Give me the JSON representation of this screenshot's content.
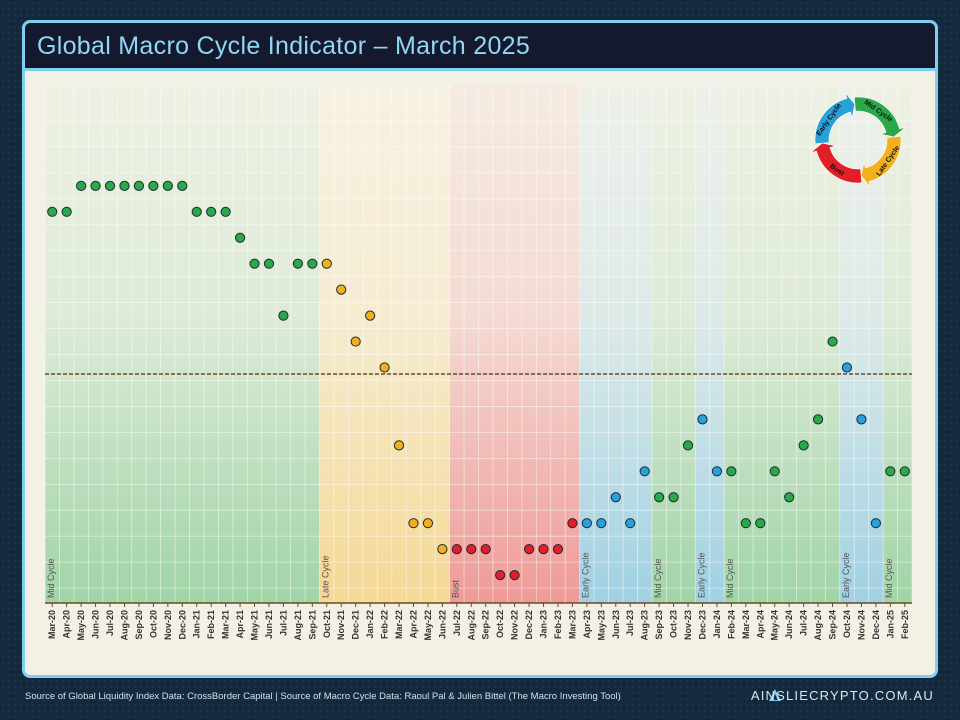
{
  "header": {
    "title": "Global Macro Cycle Indicator – March 2025"
  },
  "footer": {
    "source": "Source of Global Liquidity Index Data: CrossBorder Capital | Source of Macro Cycle Data: Raoul Pal & Julien Bittel (The Macro Investing Tool)",
    "brand": "AINSLIECRYPTO.COM.AU"
  },
  "legend": {
    "labels": [
      "Mid Cycle",
      "Late Cycle",
      "Bust",
      "Early Cycle"
    ],
    "colors": {
      "Mid Cycle": "#2aa84a",
      "Late Cycle": "#f2b01e",
      "Bust": "#e41e26",
      "Early Cycle": "#29a0da"
    }
  },
  "chart_data": {
    "type": "scatter",
    "title": "Global Macro Cycle Indicator – March 2025",
    "ylim": [
      0,
      21
    ],
    "threshold": 9.75,
    "categories": [
      "Mar-20",
      "Apr-20",
      "May-20",
      "Jun-20",
      "Jul-20",
      "Aug-20",
      "Sep-20",
      "Oct-20",
      "Nov-20",
      "Dec-20",
      "Jan-21",
      "Feb-21",
      "Mar-21",
      "Apr-21",
      "May-21",
      "Jun-21",
      "Jul-21",
      "Aug-21",
      "Sep-21",
      "Oct-21",
      "Nov-21",
      "Dec-21",
      "Jan-22",
      "Feb-22",
      "Mar-22",
      "Apr-22",
      "May-22",
      "Jun-22",
      "Jul-22",
      "Aug-22",
      "Sep-22",
      "Oct-22",
      "Nov-22",
      "Dec-22",
      "Jan-23",
      "Feb-23",
      "Mar-23",
      "Apr-23",
      "May-23",
      "Jun-23",
      "Jul-23",
      "Aug-23",
      "Sep-23",
      "Oct-23",
      "Nov-23",
      "Dec-23",
      "Jan-24",
      "Feb-24",
      "Mar-24",
      "Apr-24",
      "May-24",
      "Jun-24",
      "Jul-24",
      "Aug-24",
      "Sep-24",
      "Oct-24",
      "Nov-24",
      "Dec-24",
      "Jan-25",
      "Feb-25"
    ],
    "values": [
      16,
      16,
      17,
      17,
      17,
      17,
      17,
      17,
      17,
      17,
      16,
      16,
      16,
      15,
      14,
      14,
      12,
      14,
      14,
      14,
      13,
      11,
      12,
      10,
      7,
      4,
      4,
      3,
      3,
      3,
      3,
      2,
      2,
      3,
      3,
      3,
      4,
      4,
      4,
      5,
      4,
      6,
      5,
      5,
      7,
      8,
      6,
      6,
      4,
      4,
      6,
      5,
      7,
      8,
      11,
      10,
      8,
      4,
      6,
      6
    ],
    "phases": [
      "Mid Cycle",
      "Mid Cycle",
      "Mid Cycle",
      "Mid Cycle",
      "Mid Cycle",
      "Mid Cycle",
      "Mid Cycle",
      "Mid Cycle",
      "Mid Cycle",
      "Mid Cycle",
      "Mid Cycle",
      "Mid Cycle",
      "Mid Cycle",
      "Mid Cycle",
      "Mid Cycle",
      "Mid Cycle",
      "Mid Cycle",
      "Mid Cycle",
      "Mid Cycle",
      "Late Cycle",
      "Late Cycle",
      "Late Cycle",
      "Late Cycle",
      "Late Cycle",
      "Late Cycle",
      "Late Cycle",
      "Late Cycle",
      "Late Cycle",
      "Bust",
      "Bust",
      "Bust",
      "Bust",
      "Bust",
      "Bust",
      "Bust",
      "Bust",
      "Bust",
      "Early Cycle",
      "Early Cycle",
      "Early Cycle",
      "Early Cycle",
      "Early Cycle",
      "Mid Cycle",
      "Mid Cycle",
      "Mid Cycle",
      "Early Cycle",
      "Early Cycle",
      "Mid Cycle",
      "Mid Cycle",
      "Mid Cycle",
      "Mid Cycle",
      "Mid Cycle",
      "Mid Cycle",
      "Mid Cycle",
      "Mid Cycle",
      "Early Cycle",
      "Early Cycle",
      "Early Cycle",
      "Mid Cycle",
      "Mid Cycle"
    ],
    "regions": [
      {
        "label": "Mid Cycle",
        "start": 0,
        "end": 19
      },
      {
        "label": "Late Cycle",
        "start": 19,
        "end": 28
      },
      {
        "label": "Bust",
        "start": 28,
        "end": 37
      },
      {
        "label": "Early Cycle",
        "start": 37,
        "end": 42
      },
      {
        "label": "Mid Cycle",
        "start": 42,
        "end": 45
      },
      {
        "label": "Early Cycle",
        "start": 45,
        "end": 47
      },
      {
        "label": "Mid Cycle",
        "start": 47,
        "end": 55
      },
      {
        "label": "Early Cycle",
        "start": 55,
        "end": 58
      },
      {
        "label": "Mid Cycle",
        "start": 58,
        "end": 60
      }
    ]
  }
}
